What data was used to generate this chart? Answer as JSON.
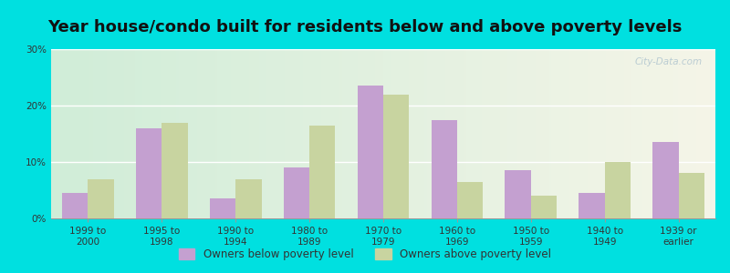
{
  "title": "Year house/condo built for residents below and above poverty levels",
  "categories": [
    "1999 to\n2000",
    "1995 to\n1998",
    "1990 to\n1994",
    "1980 to\n1989",
    "1970 to\n1979",
    "1960 to\n1969",
    "1950 to\n1959",
    "1940 to\n1949",
    "1939 or\nearlier"
  ],
  "below_poverty": [
    4.5,
    16.0,
    3.5,
    9.0,
    23.5,
    17.5,
    8.5,
    4.5,
    13.5
  ],
  "above_poverty": [
    7.0,
    17.0,
    7.0,
    16.5,
    22.0,
    6.5,
    4.0,
    10.0,
    8.0
  ],
  "below_color": "#c4a0d0",
  "above_color": "#c8d4a0",
  "background_outer": "#00e0e0",
  "background_inner_left": "#d0edd8",
  "background_inner_right": "#f5f5e8",
  "ylim": [
    0,
    30
  ],
  "yticks": [
    0,
    10,
    20,
    30
  ],
  "bar_width": 0.35,
  "legend_below_label": "Owners below poverty level",
  "legend_above_label": "Owners above poverty level",
  "watermark": "City-Data.com",
  "title_fontsize": 13,
  "tick_fontsize": 7.5,
  "legend_fontsize": 8.5
}
